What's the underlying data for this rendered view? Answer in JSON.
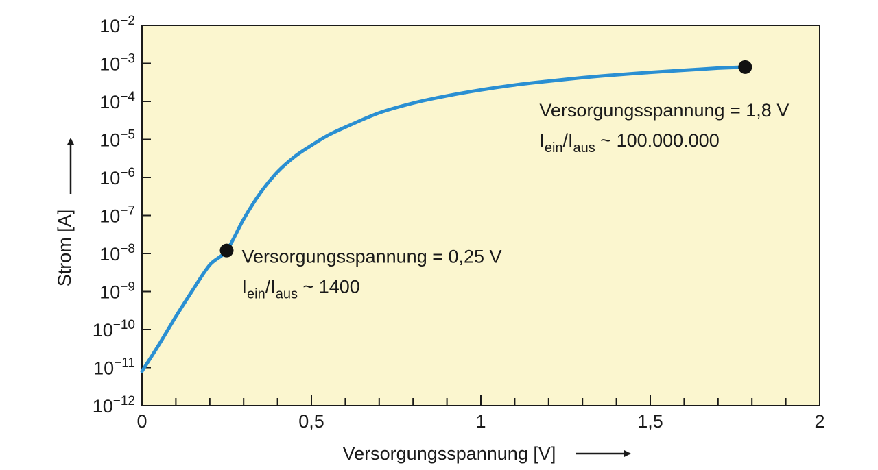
{
  "chart_data": {
    "type": "line",
    "xlabel": "Versorgungsspannung [V]",
    "ylabel": "Strom [A]",
    "xlim": [
      0,
      2
    ],
    "ylim": [
      1e-12,
      0.01
    ],
    "yscale": "log",
    "grid": false,
    "background_color": "#fbf6cf",
    "line_color": "#2a8fd2",
    "x_ticks": [
      {
        "value": 0,
        "label": "0"
      },
      {
        "value": 0.5,
        "label": "0,5"
      },
      {
        "value": 1,
        "label": "1"
      },
      {
        "value": 1.5,
        "label": "1,5"
      },
      {
        "value": 2,
        "label": "2"
      }
    ],
    "y_ticks": [
      {
        "value": 1e-12,
        "base": "10",
        "exp": "−12"
      },
      {
        "value": 1e-11,
        "base": "10",
        "exp": "−11"
      },
      {
        "value": 1e-10,
        "base": "10",
        "exp": "−10"
      },
      {
        "value": 1e-09,
        "base": "10",
        "exp": "−9"
      },
      {
        "value": 1e-08,
        "base": "10",
        "exp": "−8"
      },
      {
        "value": 1e-07,
        "base": "10",
        "exp": "−7"
      },
      {
        "value": 1e-06,
        "base": "10",
        "exp": "−6"
      },
      {
        "value": 1e-05,
        "base": "10",
        "exp": "−5"
      },
      {
        "value": 0.0001,
        "base": "10",
        "exp": "−4"
      },
      {
        "value": 0.001,
        "base": "10",
        "exp": "−3"
      },
      {
        "value": 0.01,
        "base": "10",
        "exp": "−2"
      }
    ],
    "series": [
      {
        "x": [
          0,
          0.05,
          0.1,
          0.15,
          0.2,
          0.25,
          0.3,
          0.35,
          0.4,
          0.45,
          0.5,
          0.55,
          0.6,
          0.7,
          0.8,
          0.9,
          1.0,
          1.1,
          1.2,
          1.3,
          1.4,
          1.5,
          1.6,
          1.7,
          1.78
        ],
        "y": [
          8e-12,
          4e-11,
          2.2e-10,
          1.1e-09,
          5e-09,
          1.2e-08,
          8e-08,
          4e-07,
          1.4e-06,
          3.5e-06,
          7e-06,
          1.3e-05,
          2.1e-05,
          5e-05,
          9e-05,
          0.00014,
          0.0002,
          0.00027,
          0.00034,
          0.00042,
          0.0005,
          0.00058,
          0.00066,
          0.00075,
          0.0008
        ]
      }
    ],
    "annotations": [
      {
        "x": 0.25,
        "y": 1.2e-08,
        "line1": "Versorgungsspannung = 0,25 V",
        "line2_main1": "I",
        "line2_sub1": "ein",
        "line2_slash": "/I",
        "line2_sub2": "aus",
        "line2_rest": " ~ 1400"
      },
      {
        "x": 1.78,
        "y": 0.0008,
        "line1": "Versorgungsspannung = 1,8 V",
        "line2_main1": "I",
        "line2_sub1": "ein",
        "line2_slash": "/I",
        "line2_sub2": "aus",
        "line2_rest": " ~ 100.000.000"
      }
    ]
  }
}
